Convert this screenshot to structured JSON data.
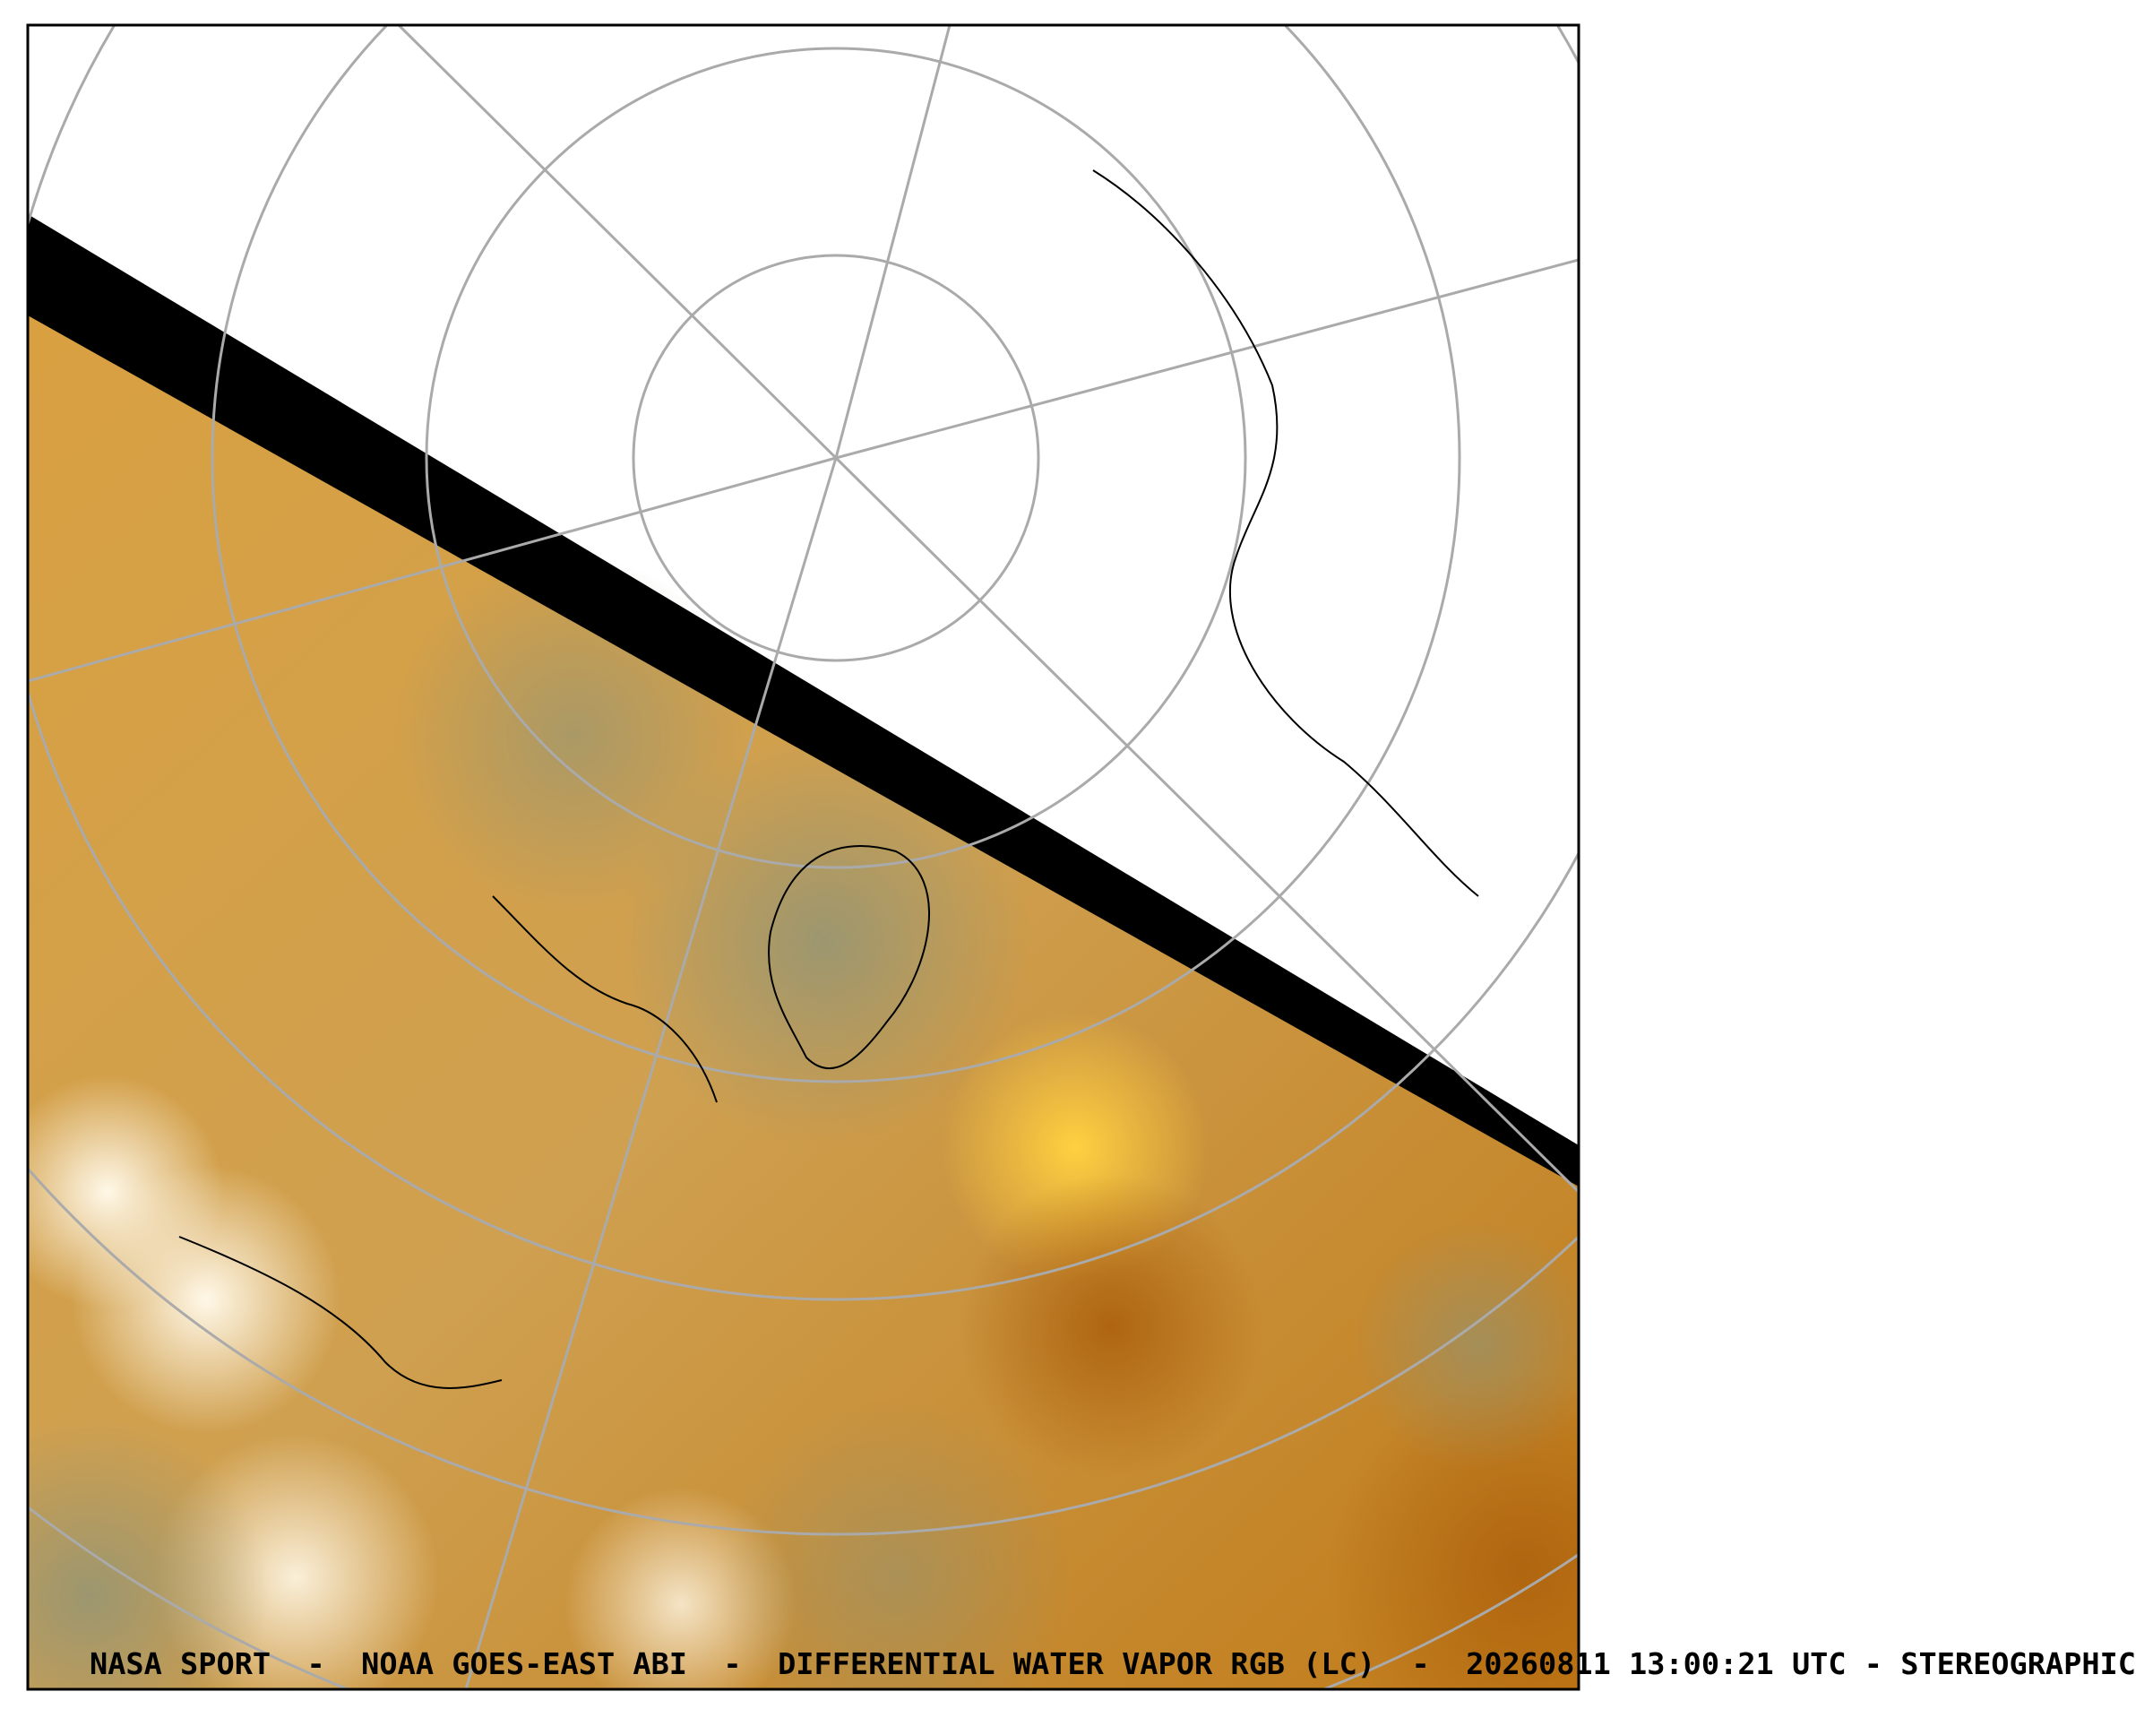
{
  "caption": "NASA SPORT  -  NOAA GOES-EAST ABI  -  DIFFERENTIAL WATER VAPOR RGB (LC)  -  20260811 13:00:21 UTC - STEREOGRAPHIC"
}
